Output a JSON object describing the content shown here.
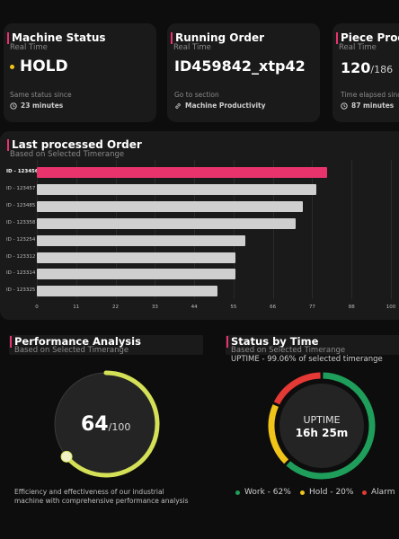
{
  "cards": {
    "machine_status": {
      "title": "Machine Status",
      "subtitle": "Real Time",
      "value": "HOLD",
      "status_color": "#f0c419",
      "footer_label": "Same status since",
      "footer_value": "23 minutes",
      "footer_icon": "clock-icon"
    },
    "running_order": {
      "title": "Running Order",
      "subtitle": "Real Time",
      "value": "ID459842_xtp42",
      "footer_label": "Go to section",
      "footer_value": "Machine Productivity",
      "footer_icon": "link-icon"
    },
    "piece_prod": {
      "title": "Piece Prod",
      "subtitle": "Real Time",
      "value": "120",
      "value_total": "/186",
      "footer_label": "Time elapsed sinc",
      "footer_value": "87 minutes",
      "footer_icon": "clock-icon"
    }
  },
  "last_order": {
    "title": "Last processed Order",
    "subtitle": "Based on Selected Timerange"
  },
  "chart_data": {
    "type": "bar",
    "orientation": "horizontal",
    "categories": [
      "ID - 123456",
      "ID - 123457",
      "ID - 123485",
      "ID - 123358",
      "ID - 123254",
      "ID - 123312",
      "ID - 123314",
      "ID - 123325"
    ],
    "values": [
      82,
      79,
      75,
      73,
      59,
      56,
      56,
      51
    ],
    "highlight_index": 0,
    "highlight_color": "#e8336d",
    "bar_color": "#cfcfcf",
    "xlim": [
      0,
      100
    ],
    "xticks": [
      "0",
      "11",
      "22",
      "33",
      "44",
      "55",
      "66",
      "77",
      "88",
      "100"
    ],
    "grid": true
  },
  "performance": {
    "title": "Performance Analysis",
    "subtitle": "Based on Selected Timerange",
    "value": "64",
    "total": "/100",
    "fraction": 0.64,
    "ring_color": "#d4e157",
    "description": "Efficiency and effectiveness of our industrial machine with comprehensive performance analysis"
  },
  "status_time": {
    "title": "Status by Time",
    "subtitle": "Based on Selected Timerange",
    "uptime_note": "UPTIME - 99.06% of selected timerange",
    "center_label": "UPTIME",
    "center_value": "16h 25m",
    "segments": [
      {
        "name": "Work - 62%",
        "percent": 62,
        "color": "#1e9e5a"
      },
      {
        "name": "Hold - 20%",
        "percent": 20,
        "color": "#f0c419"
      },
      {
        "name": "Alarm",
        "percent": 18,
        "color": "#e53935"
      }
    ]
  }
}
